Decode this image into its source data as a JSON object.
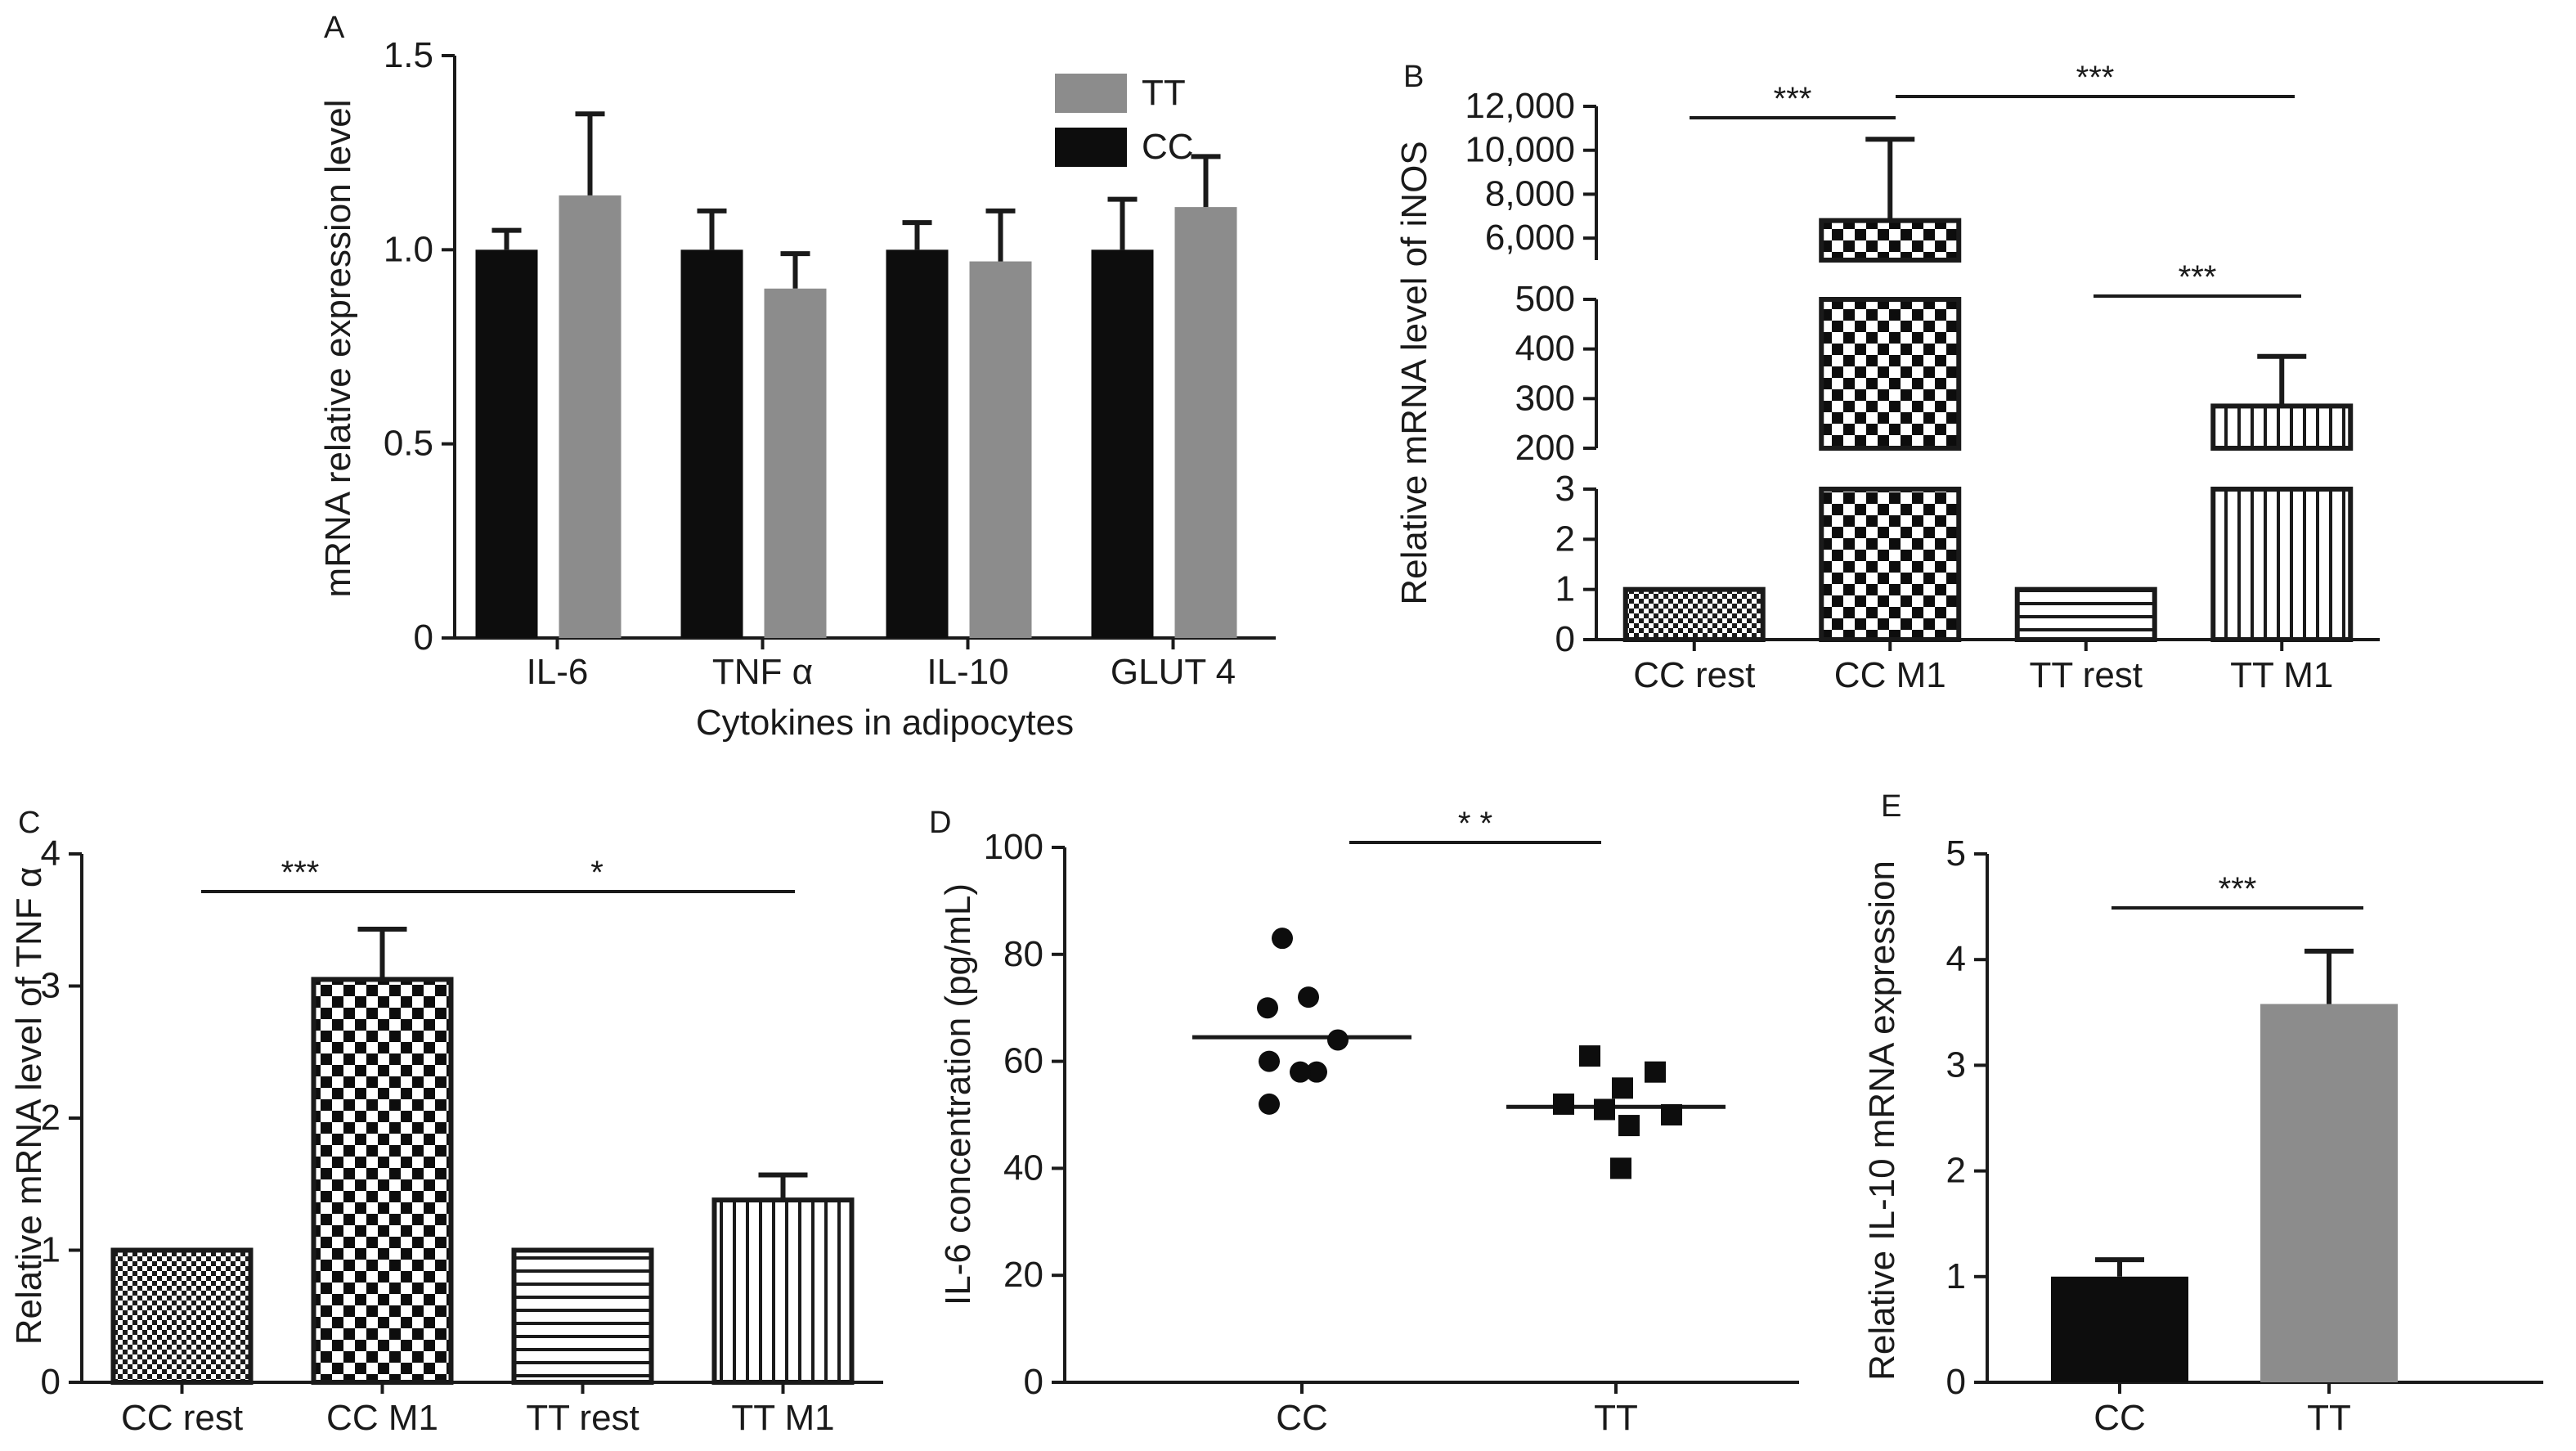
{
  "colors": {
    "axis": "#1a1a1a",
    "cc": "#0d0d0d",
    "tt": "#8c8c8c"
  },
  "chart_data": [
    {
      "panel": "A",
      "type": "bar",
      "title": "",
      "xlabel": "Cytokines in adipocytes",
      "ylabel": "mRNA relative expression level",
      "categories": [
        "IL-6",
        "TNF α",
        "IL-10",
        "GLUT 4"
      ],
      "series": [
        {
          "name": "CC",
          "color": "#0d0d0d",
          "values": [
            1.0,
            1.0,
            1.0,
            1.0
          ],
          "errors": [
            0.05,
            0.1,
            0.07,
            0.13
          ]
        },
        {
          "name": "TT",
          "color": "#8c8c8c",
          "values": [
            1.14,
            0.9,
            0.97,
            1.11
          ],
          "errors": [
            0.21,
            0.09,
            0.13,
            0.13
          ]
        }
      ],
      "ylim": [
        0,
        1.5
      ],
      "yticks": [
        "0",
        "0.5",
        "1.0",
        "1.5"
      ],
      "legend": {
        "position": "top-right",
        "entries": [
          "TT",
          "CC"
        ]
      },
      "grid": false
    },
    {
      "panel": "B",
      "type": "bar",
      "title": "",
      "xlabel": "",
      "ylabel": "Relative mRNA level of iNOS",
      "y_axis_broken": true,
      "categories": [
        "CC rest",
        "CC M1",
        "TT rest",
        "TT M1"
      ],
      "values": [
        1.0,
        6800,
        1.0,
        285
      ],
      "errors": [
        0.0,
        3700,
        0.0,
        100
      ],
      "fills": [
        "small-check",
        "check",
        "horizontal-lines",
        "vertical-lines"
      ],
      "y_segments": [
        {
          "range": [
            0,
            3
          ],
          "ticks": [
            "0",
            "1",
            "2",
            "3"
          ]
        },
        {
          "range": [
            200,
            500
          ],
          "ticks": [
            "200",
            "300",
            "400",
            "500"
          ]
        },
        {
          "range": [
            5000,
            12000
          ],
          "ticks": [
            "6,000",
            "8,000",
            "10,000",
            "12,000"
          ]
        }
      ],
      "significance": [
        {
          "from": "CC rest",
          "to": "CC M1",
          "label": "***"
        },
        {
          "from": "CC M1",
          "to": "TT M1",
          "label": "***"
        },
        {
          "from": "TT rest",
          "to": "TT M1",
          "label": "***"
        }
      ]
    },
    {
      "panel": "C",
      "type": "bar",
      "title": "",
      "xlabel": "",
      "ylabel": "Relative mRNA level of TNF α",
      "categories": [
        "CC rest",
        "CC M1",
        "TT rest",
        "TT M1"
      ],
      "values": [
        1.0,
        3.05,
        1.0,
        1.38
      ],
      "errors": [
        0.0,
        0.38,
        0.0,
        0.19
      ],
      "fills": [
        "small-check",
        "check",
        "horizontal-lines",
        "vertical-lines"
      ],
      "ylim": [
        0,
        4
      ],
      "yticks": [
        "0",
        "1",
        "2",
        "3",
        "4"
      ],
      "significance": [
        {
          "from": "CC rest",
          "to": "CC M1",
          "label": "***"
        },
        {
          "from": "CC M1",
          "to": "TT M1",
          "label": "*"
        }
      ]
    },
    {
      "panel": "D",
      "type": "scatter",
      "title": "",
      "xlabel": "",
      "ylabel": "IL-6 concentration (pg/mL)",
      "categories": [
        "CC",
        "TT"
      ],
      "groups": [
        {
          "name": "CC",
          "marker": "circle",
          "mean": 64.5,
          "points": [
            83,
            70,
            72,
            64,
            60,
            58,
            58,
            52
          ]
        },
        {
          "name": "TT",
          "marker": "square",
          "mean": 51.5,
          "points": [
            61,
            58,
            55,
            52,
            50,
            51,
            48,
            40
          ]
        }
      ],
      "ylim": [
        0,
        100
      ],
      "yticks": [
        "0",
        "20",
        "40",
        "60",
        "80",
        "100"
      ],
      "significance": [
        {
          "from": "CC",
          "to": "TT",
          "label": "*          *"
        }
      ]
    },
    {
      "panel": "E",
      "type": "bar",
      "title": "",
      "xlabel": "",
      "ylabel": "Relative IL-10 mRNA expression",
      "categories": [
        "CC",
        "TT"
      ],
      "values": [
        1.0,
        3.58
      ],
      "errors": [
        0.16,
        0.5
      ],
      "colors": [
        "#0d0d0d",
        "#8c8c8c"
      ],
      "ylim": [
        0,
        5
      ],
      "yticks": [
        "0",
        "1",
        "2",
        "3",
        "4",
        "5"
      ],
      "significance": [
        {
          "from": "CC",
          "to": "TT",
          "label": "***"
        }
      ]
    }
  ]
}
